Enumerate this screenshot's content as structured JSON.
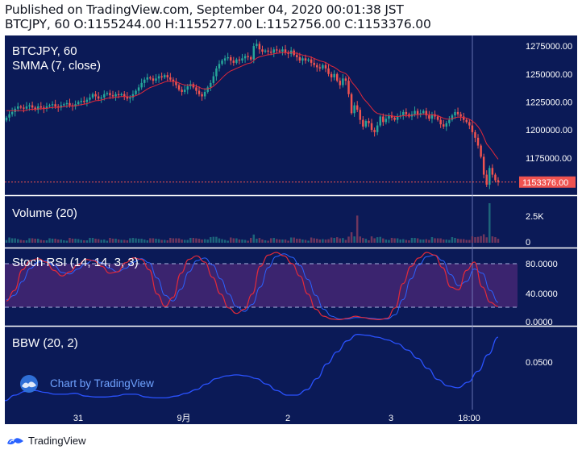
{
  "header": {
    "line1": "Published on TradingView.com, September 04, 2020 00:01:38 JST",
    "line2": "BTCJPY, 60 O:1155244.00 H:1155277.00 L:1152756.00 C:1153376.00"
  },
  "panes": {
    "price": {
      "symbol": "BTCJPY, 60",
      "indicator": "SMMA (7, close)"
    },
    "volume": {
      "label": "Volume (20)"
    },
    "stoch": {
      "label": "Stoch RSI (14, 14, 3, 3)"
    },
    "bbw": {
      "label": "BBW (20, 2)"
    }
  },
  "watermark": "Chart by TradingView",
  "footer": {
    "brand": "TradingView"
  },
  "colors": {
    "background": "#0b1a57",
    "up": "#26a69a",
    "down": "#ef5350",
    "smma": "#e0283a",
    "stoch_k": "#e22a3a",
    "stoch_d": "#2a62ff",
    "bbw": "#2a52ff",
    "band": "#6b2e88",
    "last_price": "#ef5350"
  },
  "chart_data": [
    {
      "type": "candlestick",
      "title": "BTCJPY, 60",
      "x_ticks": [
        "31",
        "9月",
        "2",
        "3",
        "18:00"
      ],
      "y_ticks": [
        "1275000.00",
        "1250000.00",
        "1225000.00",
        "1200000.00",
        "1175000.00"
      ],
      "y_tick_values": [
        1275000,
        1250000,
        1225000,
        1200000,
        1175000
      ],
      "ylim": [
        1146000,
        1283000
      ],
      "last_price": 1153376,
      "last_price_label": "1153376.00",
      "ohlc": {
        "open": 1155244,
        "high": 1155277,
        "low": 1152756,
        "close": 1153376
      },
      "closes": [
        1211000,
        1214000,
        1216000,
        1219000,
        1221000,
        1220000,
        1219000,
        1221000,
        1222000,
        1220000,
        1218000,
        1221000,
        1220000,
        1219000,
        1221000,
        1222000,
        1223000,
        1221000,
        1220000,
        1222000,
        1223000,
        1224000,
        1222000,
        1221000,
        1223000,
        1225000,
        1226000,
        1225000,
        1227000,
        1229000,
        1232000,
        1230000,
        1228000,
        1229000,
        1232000,
        1233000,
        1231000,
        1230000,
        1232000,
        1231000,
        1232000,
        1230000,
        1228000,
        1229000,
        1232000,
        1235000,
        1238000,
        1242000,
        1245000,
        1247000,
        1246000,
        1244000,
        1246000,
        1248000,
        1247000,
        1249000,
        1247000,
        1245000,
        1243000,
        1240000,
        1236000,
        1234000,
        1236000,
        1239000,
        1241000,
        1238000,
        1235000,
        1232000,
        1230000,
        1234000,
        1238000,
        1242000,
        1248000,
        1255000,
        1259000,
        1262000,
        1264000,
        1265000,
        1262000,
        1260000,
        1263000,
        1262000,
        1264000,
        1266000,
        1265000,
        1263000,
        1275000,
        1277000,
        1272000,
        1270000,
        1271000,
        1270000,
        1269000,
        1272000,
        1271000,
        1270000,
        1272000,
        1269000,
        1268000,
        1271000,
        1267000,
        1265000,
        1262000,
        1264000,
        1262000,
        1263000,
        1260000,
        1258000,
        1256000,
        1255000,
        1258000,
        1255000,
        1250000,
        1247000,
        1250000,
        1244000,
        1240000,
        1246000,
        1244000,
        1232000,
        1215000,
        1222000,
        1218000,
        1209000,
        1203000,
        1208000,
        1206000,
        1200000,
        1198000,
        1204000,
        1212000,
        1207000,
        1210000,
        1213000,
        1211000,
        1209000,
        1212000,
        1213000,
        1216000,
        1214000,
        1212000,
        1214000,
        1217000,
        1214000,
        1215000,
        1217000,
        1213000,
        1210000,
        1214000,
        1212000,
        1209000,
        1205000,
        1203000,
        1206000,
        1209000,
        1213000,
        1216000,
        1214000,
        1212000,
        1209000,
        1207000,
        1204000,
        1198000,
        1193000,
        1186000,
        1176000,
        1160000,
        1151000,
        1166000,
        1160000,
        1155000,
        1153376
      ],
      "volume_ticks": [
        "2.5K",
        "0"
      ],
      "volume_spikes": [
        {
          "at": "3 (overnight)",
          "value": 3300
        },
        {
          "at": "18:00",
          "value": 4800
        }
      ],
      "stoch_ticks": [
        "80.0000",
        "40.0000",
        "0.0000"
      ],
      "stoch_band": [
        20,
        80
      ],
      "stoch_k": [
        30,
        45,
        75,
        88,
        91,
        86,
        74,
        66,
        72,
        82,
        90,
        88,
        80,
        70,
        72,
        85,
        92,
        90,
        75,
        40,
        22,
        35,
        70,
        90,
        95,
        86,
        64,
        40,
        20,
        12,
        18,
        40,
        80,
        96,
        100,
        95,
        84,
        66,
        40,
        18,
        8,
        4,
        3,
        5,
        8,
        6,
        4,
        3,
        5,
        20,
        55,
        80,
        92,
        100,
        96,
        78,
        50,
        46,
        74,
        86,
        50,
        28,
        22
      ],
      "stoch_d": [
        32,
        38,
        58,
        77,
        86,
        88,
        81,
        71,
        69,
        76,
        84,
        89,
        85,
        77,
        72,
        77,
        86,
        91,
        85,
        63,
        38,
        30,
        47,
        72,
        88,
        92,
        82,
        62,
        40,
        22,
        15,
        25,
        50,
        78,
        94,
        98,
        93,
        81,
        61,
        38,
        18,
        8,
        4,
        4,
        6,
        6,
        5,
        4,
        4,
        10,
        32,
        62,
        82,
        94,
        96,
        88,
        68,
        52,
        58,
        76,
        70,
        45,
        28
      ],
      "bbw_ticks": [
        "0.0500"
      ],
      "bbw": [
        0.008,
        0.014,
        0.018,
        0.019,
        0.017,
        0.015,
        0.015,
        0.016,
        0.013,
        0.012,
        0.012,
        0.013,
        0.015,
        0.015,
        0.012,
        0.011,
        0.011,
        0.013,
        0.016,
        0.02,
        0.026,
        0.032,
        0.035,
        0.036,
        0.035,
        0.032,
        0.026,
        0.019,
        0.014,
        0.014,
        0.02,
        0.032,
        0.048,
        0.061,
        0.073,
        0.08,
        0.079,
        0.077,
        0.074,
        0.07,
        0.063,
        0.054,
        0.043,
        0.031,
        0.024,
        0.022,
        0.028,
        0.04,
        0.058,
        0.077
      ]
    }
  ]
}
